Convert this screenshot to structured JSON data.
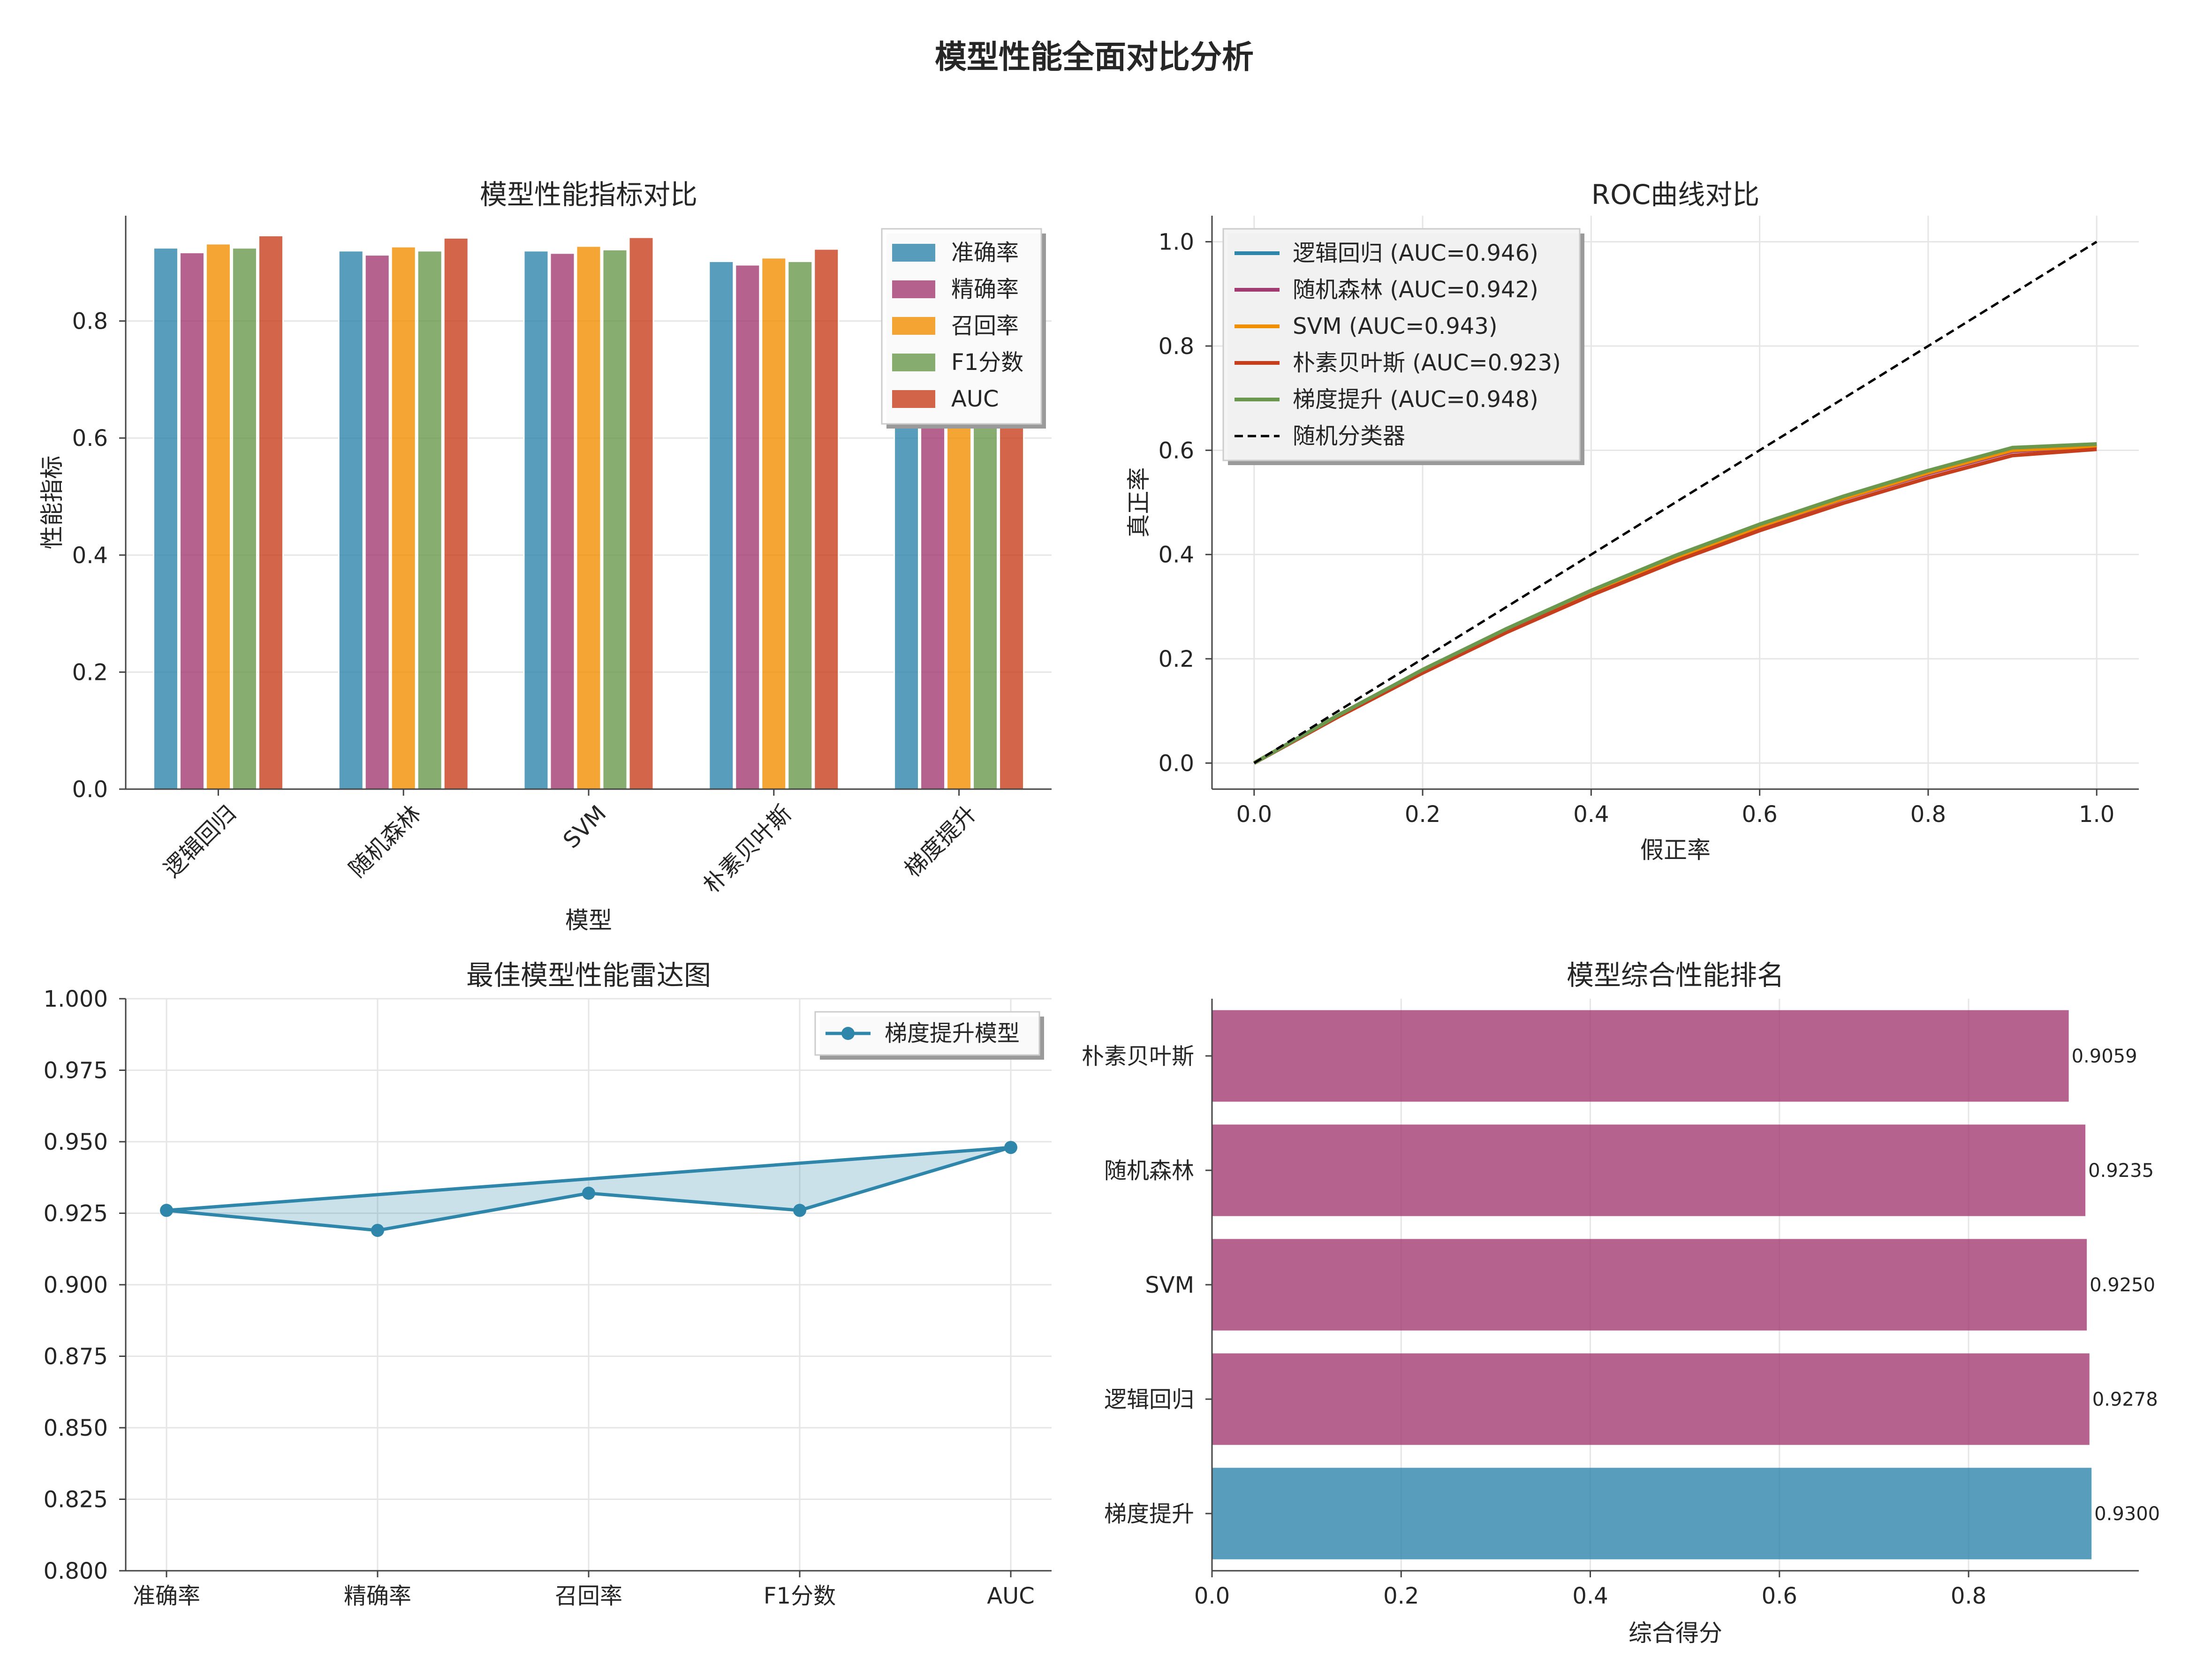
{
  "suptitle": "模型性能全面对比分析",
  "colors": {
    "accuracy": "#2E86AB",
    "precision": "#A23B72",
    "recall": "#F18F01",
    "f1": "#6A994E",
    "auc": "#C73E1D",
    "random": "#000000"
  },
  "chart_data": [
    {
      "type": "bar",
      "title": "模型性能指标对比",
      "xlabel": "模型",
      "ylabel": "性能指标",
      "categories": [
        "逻辑回归",
        "随机森林",
        "SVM",
        "朴素贝叶斯",
        "梯度提升"
      ],
      "series": [
        {
          "name": "准确率",
          "values": [
            0.925,
            0.92,
            0.92,
            0.902,
            0.926
          ]
        },
        {
          "name": "精确率",
          "values": [
            0.917,
            0.913,
            0.916,
            0.896,
            0.919
          ]
        },
        {
          "name": "召回率",
          "values": [
            0.932,
            0.927,
            0.928,
            0.908,
            0.932
          ]
        },
        {
          "name": "F1分数",
          "values": [
            0.925,
            0.92,
            0.922,
            0.902,
            0.926
          ]
        },
        {
          "name": "AUC",
          "values": [
            0.946,
            0.942,
            0.943,
            0.923,
            0.948
          ]
        }
      ],
      "ylim": [
        0,
        0.98
      ],
      "yticks": [
        0.0,
        0.2,
        0.4,
        0.6,
        0.8
      ],
      "grid": true,
      "legend": "top-right"
    },
    {
      "type": "line",
      "title": "ROC曲线对比",
      "xlabel": "假正率",
      "ylabel": "真正率",
      "xlim": [
        -0.05,
        1.05
      ],
      "ylim": [
        -0.05,
        1.05
      ],
      "xticks": [
        0.0,
        0.2,
        0.4,
        0.6,
        0.8,
        1.0
      ],
      "yticks": [
        0.0,
        0.2,
        0.4,
        0.6,
        0.8,
        1.0
      ],
      "x": [
        0,
        0.1,
        0.2,
        0.3,
        0.4,
        0.5,
        0.6,
        0.7,
        0.8,
        0.9,
        1.0
      ],
      "series": [
        {
          "name": "逻辑回归 (AUC=0.946)",
          "values": [
            0,
            0.092,
            0.178,
            0.257,
            0.33,
            0.397,
            0.457,
            0.511,
            0.56,
            0.603,
            0.61
          ]
        },
        {
          "name": "随机森林 (AUC=0.942)",
          "values": [
            0,
            0.091,
            0.176,
            0.255,
            0.327,
            0.393,
            0.453,
            0.507,
            0.555,
            0.598,
            0.607
          ]
        },
        {
          "name": "SVM (AUC=0.943)",
          "values": [
            0,
            0.091,
            0.177,
            0.256,
            0.328,
            0.394,
            0.454,
            0.508,
            0.557,
            0.6,
            0.608
          ]
        },
        {
          "name": "朴素贝叶斯 (AUC=0.923)",
          "values": [
            0,
            0.089,
            0.173,
            0.251,
            0.322,
            0.387,
            0.446,
            0.499,
            0.547,
            0.59,
            0.602
          ]
        },
        {
          "name": "梯度提升 (AUC=0.948)",
          "values": [
            0,
            0.092,
            0.179,
            0.258,
            0.331,
            0.398,
            0.458,
            0.512,
            0.561,
            0.605,
            0.612
          ]
        },
        {
          "name": "随机分类器",
          "values": [
            0,
            0.1,
            0.2,
            0.3,
            0.4,
            0.5,
            0.6,
            0.7,
            0.8,
            0.9,
            1.0
          ]
        }
      ],
      "grid": true,
      "legend": "top-left"
    },
    {
      "type": "area",
      "title": "最佳模型性能雷达图",
      "categories": [
        "准确率",
        "精确率",
        "召回率",
        "F1分数",
        "AUC"
      ],
      "series": [
        {
          "name": "梯度提升模型",
          "values": [
            0.926,
            0.919,
            0.932,
            0.926,
            0.948
          ]
        }
      ],
      "ylim": [
        0.8,
        1.0
      ],
      "yticks": [
        0.8,
        0.825,
        0.85,
        0.875,
        0.9,
        0.925,
        0.95,
        0.975,
        1.0
      ],
      "grid": true,
      "legend": "top-right"
    },
    {
      "type": "bar",
      "orientation": "horizontal",
      "title": "模型综合性能排名",
      "xlabel": "综合得分",
      "categories": [
        "梯度提升",
        "逻辑回归",
        "SVM",
        "随机森林",
        "朴素贝叶斯"
      ],
      "values": [
        0.93,
        0.9278,
        0.925,
        0.9235,
        0.9059
      ],
      "labels": [
        "0.9300",
        "0.9278",
        "0.9250",
        "0.9235",
        "0.9059"
      ],
      "xlim": [
        0,
        0.98
      ],
      "xticks": [
        0.0,
        0.2,
        0.4,
        0.6,
        0.8
      ],
      "grid": true
    }
  ]
}
